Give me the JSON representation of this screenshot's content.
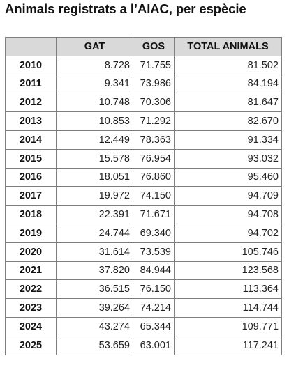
{
  "header": {
    "title": "Animals registrats a l’AIAC, per espècie"
  },
  "chart_data": {
    "type": "table",
    "title": "Animals registrats a l’AIAC, per espècie",
    "columns": [
      "",
      "GAT",
      "GOS",
      "TOTAL ANIMALS"
    ],
    "rows": [
      {
        "year": "2010",
        "gat": "8.728",
        "gos": "71.755",
        "total": "81.502"
      },
      {
        "year": "2011",
        "gat": "9.341",
        "gos": "73.986",
        "total": "84.194"
      },
      {
        "year": "2012",
        "gat": "10.748",
        "gos": "70.306",
        "total": "81.647"
      },
      {
        "year": "2013",
        "gat": "10.853",
        "gos": "71.292",
        "total": "82.670"
      },
      {
        "year": "2014",
        "gat": "12.449",
        "gos": "78.363",
        "total": "91.334"
      },
      {
        "year": "2015",
        "gat": "15.578",
        "gos": "76.954",
        "total": "93.032"
      },
      {
        "year": "2016",
        "gat": "18.051",
        "gos": "76.860",
        "total": "95.460"
      },
      {
        "year": "2017",
        "gat": "19.972",
        "gos": "74.150",
        "total": "94.709"
      },
      {
        "year": "2018",
        "gat": "22.391",
        "gos": "71.671",
        "total": "94.708"
      },
      {
        "year": "2019",
        "gat": "24.744",
        "gos": "69.340",
        "total": "94.702"
      },
      {
        "year": "2020",
        "gat": "31.614",
        "gos": "73.539",
        "total": "105.746"
      },
      {
        "year": "2021",
        "gat": "37.820",
        "gos": "84.944",
        "total": "123.568"
      },
      {
        "year": "2022",
        "gat": "36.515",
        "gos": "76.150",
        "total": "113.364"
      },
      {
        "year": "2023",
        "gat": "39.264",
        "gos": "74.214",
        "total": "114.744"
      },
      {
        "year": "2024",
        "gat": "43.274",
        "gos": "65.344",
        "total": "109.771"
      },
      {
        "year": "2025",
        "gat": "53.659",
        "gos": "63.001",
        "total": "117.241"
      }
    ]
  },
  "colors": {
    "header_bg": "#d9d9d9",
    "border": "#7f7f7f",
    "text": "#111111"
  }
}
